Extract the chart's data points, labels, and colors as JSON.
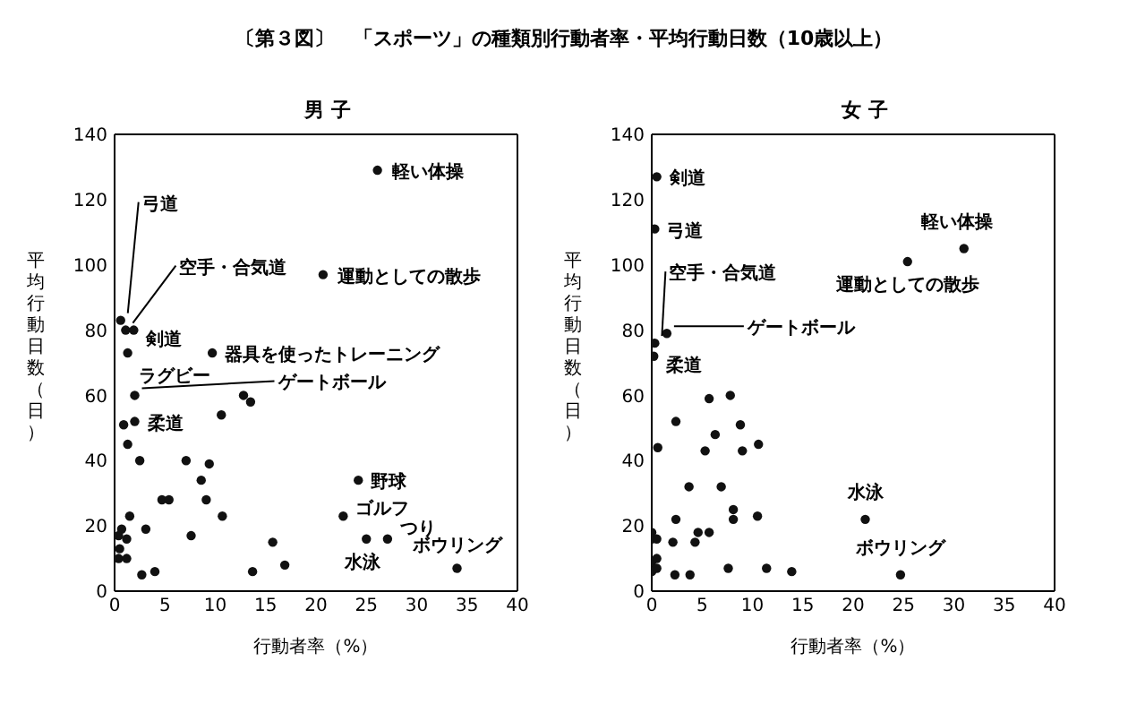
{
  "chart_data": [
    {
      "type": "scatter",
      "title": "〔第３図〕　「スポーツ」の種類別行動者率・平均行動日数（10歳以上）",
      "subtitle": "男 子",
      "xlabel": "行動者率（%）",
      "ylabel": "平均行動日数（日）",
      "xlim": [
        0,
        40
      ],
      "xticks": [
        0,
        5,
        10,
        15,
        20,
        25,
        30,
        35,
        40
      ],
      "ylim": [
        0,
        140
      ],
      "yticks": [
        0,
        20,
        40,
        60,
        80,
        100,
        120,
        140
      ],
      "marker": "circle",
      "series": [
        {
          "color": "#111111",
          "x": [
            26.1,
            20.7,
            0.6,
            1.1,
            1.9,
            1.3,
            9.7,
            2.0,
            2.0,
            24.2,
            22.7,
            25.0,
            27.1,
            34.0,
            0.9,
            1.3,
            2.5,
            7.1,
            12.8,
            13.5,
            10.6,
            9.4,
            8.6,
            9.1,
            4.7,
            5.4,
            10.7,
            1.5,
            0.7,
            3.1,
            0.4,
            1.2,
            7.6,
            0.5,
            0.4,
            1.2,
            2.7,
            4.0,
            13.7,
            15.7,
            16.9
          ],
          "values": [
            129,
            97,
            83,
            80,
            80,
            73,
            73,
            60,
            52,
            34,
            23,
            16,
            16,
            7,
            51,
            45,
            40,
            40,
            60,
            58,
            54,
            39,
            34,
            28,
            28,
            28,
            23,
            23,
            19,
            19,
            17,
            16,
            17,
            13,
            10,
            10,
            5,
            6,
            6,
            15,
            8
          ]
        }
      ],
      "annotations": [
        {
          "text": "軽い体操",
          "x": 26.1,
          "y": 129
        },
        {
          "text": "運動としての散歩",
          "x": 20.7,
          "y": 97
        },
        {
          "text": "弓道",
          "x": 0.6,
          "y": 83
        },
        {
          "text": "空手・合気道",
          "x": 1.1,
          "y": 80
        },
        {
          "text": "剣道",
          "x": 1.9,
          "y": 80
        },
        {
          "text": "ラグビー",
          "x": 1.3,
          "y": 73
        },
        {
          "text": "器具を使ったトレーニング",
          "x": 9.7,
          "y": 73
        },
        {
          "text": "ゲートボール",
          "x": 2.0,
          "y": 60
        },
        {
          "text": "柔道",
          "x": 2.0,
          "y": 52
        },
        {
          "text": "野球",
          "x": 24.2,
          "y": 34
        },
        {
          "text": "ゴルフ",
          "x": 22.7,
          "y": 23
        },
        {
          "text": "水泳",
          "x": 25.0,
          "y": 16
        },
        {
          "text": "つり",
          "x": 27.1,
          "y": 16
        },
        {
          "text": "ボウリング",
          "x": 34.0,
          "y": 7
        }
      ]
    },
    {
      "type": "scatter",
      "subtitle": "女 子",
      "xlabel": "行動者率（%）",
      "ylabel": "平均行動日数（日）",
      "xlim": [
        0,
        40
      ],
      "xticks": [
        0,
        5,
        10,
        15,
        20,
        25,
        30,
        35,
        40
      ],
      "ylim": [
        0,
        140
      ],
      "yticks": [
        0,
        20,
        40,
        60,
        80,
        100,
        120,
        140
      ],
      "marker": "circle",
      "series": [
        {
          "color": "#111111",
          "x": [
            0.5,
            0.3,
            31.0,
            25.4,
            0.3,
            1.5,
            0.2,
            21.2,
            24.7,
            5.7,
            7.8,
            8.8,
            6.3,
            2.4,
            0.6,
            5.3,
            9.0,
            10.6,
            3.7,
            6.9,
            8.1,
            8.1,
            2.4,
            10.5,
            0,
            0,
            0.5,
            2.1,
            4.3,
            4.6,
            5.7,
            0,
            0.5,
            0,
            0.5,
            2.3,
            3.8,
            7.6,
            11.4,
            13.9
          ],
          "values": [
            127,
            111,
            105,
            101,
            76,
            79,
            72,
            22,
            5,
            59,
            60,
            51,
            48,
            52,
            44,
            43,
            43,
            45,
            32,
            32,
            25,
            22,
            22,
            23,
            18,
            16,
            16,
            15,
            15,
            18,
            18,
            9,
            10,
            6,
            7,
            5,
            5,
            7,
            7,
            6
          ]
        }
      ],
      "annotations": [
        {
          "text": "剣道",
          "x": 0.5,
          "y": 127
        },
        {
          "text": "弓道",
          "x": 0.3,
          "y": 111
        },
        {
          "text": "軽い体操",
          "x": 31.0,
          "y": 105
        },
        {
          "text": "運動としての散歩",
          "x": 25.4,
          "y": 101
        },
        {
          "text": "空手・合気道",
          "x": 0.3,
          "y": 76
        },
        {
          "text": "ゲートボール",
          "x": 1.5,
          "y": 79
        },
        {
          "text": "柔道",
          "x": 0.2,
          "y": 72
        },
        {
          "text": "水泳",
          "x": 21.2,
          "y": 22
        },
        {
          "text": "ボウリング",
          "x": 24.7,
          "y": 5
        }
      ]
    }
  ]
}
